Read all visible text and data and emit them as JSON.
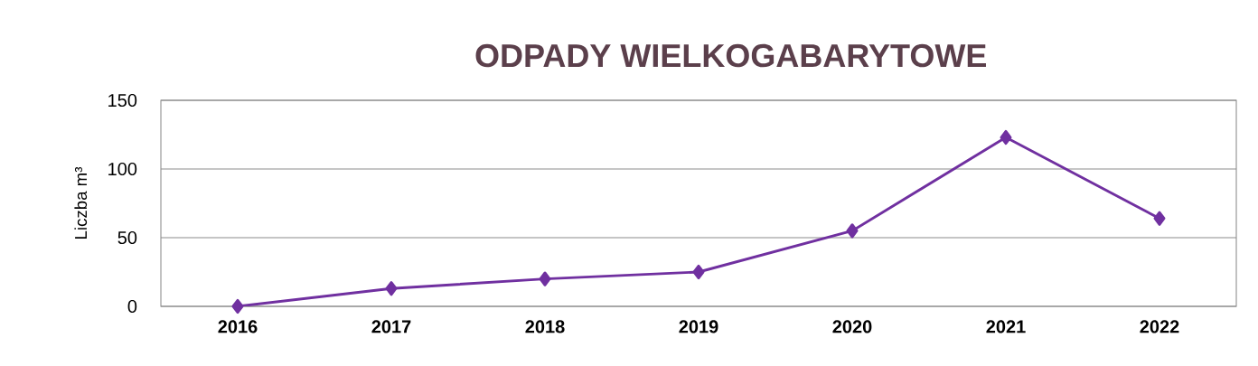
{
  "chart_data": {
    "type": "line",
    "title": "ODPADY WIELKOGABARYTOWE",
    "ylabel": "Liczba   m³",
    "categories": [
      "2016",
      "2017",
      "2018",
      "2019",
      "2020",
      "2021",
      "2022"
    ],
    "series": [
      {
        "color": "#7030a0",
        "values": [
          0,
          13,
          20,
          25,
          55,
          123,
          64
        ]
      }
    ],
    "ylim": [
      0,
      150
    ],
    "yticks": [
      0,
      50,
      100,
      150
    ],
    "grid": "y",
    "marker": "diamond",
    "line_style": "solid"
  }
}
